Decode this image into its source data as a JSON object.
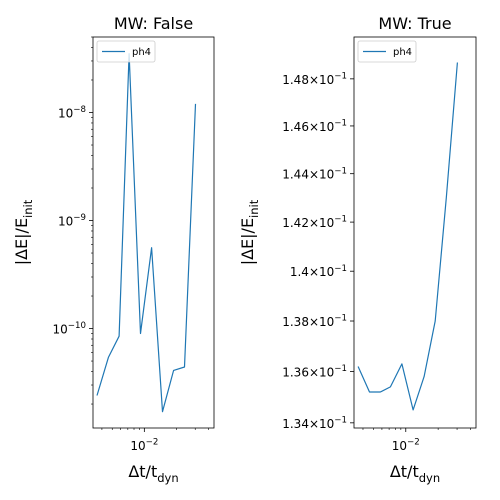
{
  "chart_data": [
    {
      "type": "line",
      "title": "MW: False",
      "xlabel": "Δt/t_dyn",
      "ylabel": "|ΔE|/E_init",
      "xscale": "log",
      "yscale": "log",
      "xlim": [
        0.0033,
        0.045
      ],
      "ylim": [
        1.2e-11,
        5e-08
      ],
      "grid": false,
      "legend": "top-left",
      "xticks": [
        {
          "value": 0.01,
          "label": "10^-2"
        }
      ],
      "yticks": [
        {
          "value": 1e-10,
          "label": "10^-10"
        },
        {
          "value": 1e-09,
          "label": "10^-9"
        },
        {
          "value": 1e-08,
          "label": "10^-8"
        }
      ],
      "series": [
        {
          "name": "ph4",
          "color": "#1f77b4",
          "x": [
            0.0036,
            0.0046,
            0.0058,
            0.0072,
            0.0092,
            0.0117,
            0.0148,
            0.0188,
            0.0238,
            0.0302
          ],
          "y": [
            2.4e-11,
            5.4e-11,
            8.5e-11,
            3.5e-08,
            9e-11,
            5.6e-10,
            1.7e-11,
            4.1e-11,
            4.4e-11,
            1.2e-08
          ]
        }
      ]
    },
    {
      "type": "line",
      "title": "MW: True",
      "xlabel": "Δt/t_dyn",
      "ylabel": "|ΔE|/E_init",
      "xscale": "log",
      "yscale": "log",
      "xlim": [
        0.0033,
        0.045
      ],
      "ylim": [
        0.1338,
        0.1498
      ],
      "grid": false,
      "legend": "top-left",
      "xticks": [
        {
          "value": 0.01,
          "label": "10^-2"
        }
      ],
      "yticks": [
        {
          "value": 0.134,
          "label": "1.34×10^-1"
        },
        {
          "value": 0.136,
          "label": "1.36×10^-1"
        },
        {
          "value": 0.138,
          "label": "1.38×10^-1"
        },
        {
          "value": 0.14,
          "label": "1.4×10^-1"
        },
        {
          "value": 0.142,
          "label": "1.42×10^-1"
        },
        {
          "value": 0.144,
          "label": "1.44×10^-1"
        },
        {
          "value": 0.146,
          "label": "1.46×10^-1"
        },
        {
          "value": 0.148,
          "label": "1.48×10^-1"
        }
      ],
      "series": [
        {
          "name": "ph4",
          "color": "#1f77b4",
          "x": [
            0.0036,
            0.0046,
            0.0058,
            0.0072,
            0.0092,
            0.0117,
            0.0148,
            0.0188,
            0.0238,
            0.0302
          ],
          "y": [
            0.1362,
            0.1352,
            0.1352,
            0.1354,
            0.1363,
            0.1345,
            0.1358,
            0.138,
            0.143,
            0.1487
          ]
        }
      ]
    }
  ]
}
